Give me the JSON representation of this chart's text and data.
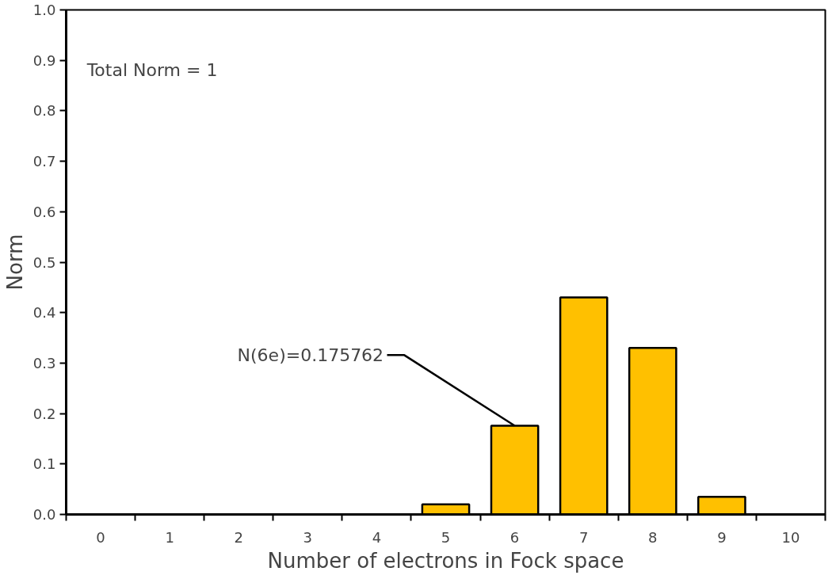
{
  "chart_data": {
    "type": "bar",
    "xlabel": "Number of electrons in Fock space",
    "ylabel": "Norm",
    "categories": [
      "0",
      "1",
      "2",
      "3",
      "4",
      "5",
      "6",
      "7",
      "8",
      "9",
      "10"
    ],
    "values": [
      null,
      null,
      null,
      null,
      null,
      0.02,
      0.175762,
      0.43,
      0.33,
      0.035,
      null
    ],
    "color": "#ffc000",
    "ylim": [
      0,
      1
    ],
    "yticks": [
      {
        "value": 0,
        "label": "0.0"
      },
      0.1,
      0.2,
      0.3,
      0.4,
      0.5,
      0.6,
      0.7,
      0.8,
      0.9,
      {
        "value": 1,
        "label": "1.0"
      }
    ],
    "annotations": [
      "Total Norm = 1",
      {
        "text": "N(6e)=0.175762",
        "x": "6",
        "y": 0.175762
      }
    ]
  }
}
